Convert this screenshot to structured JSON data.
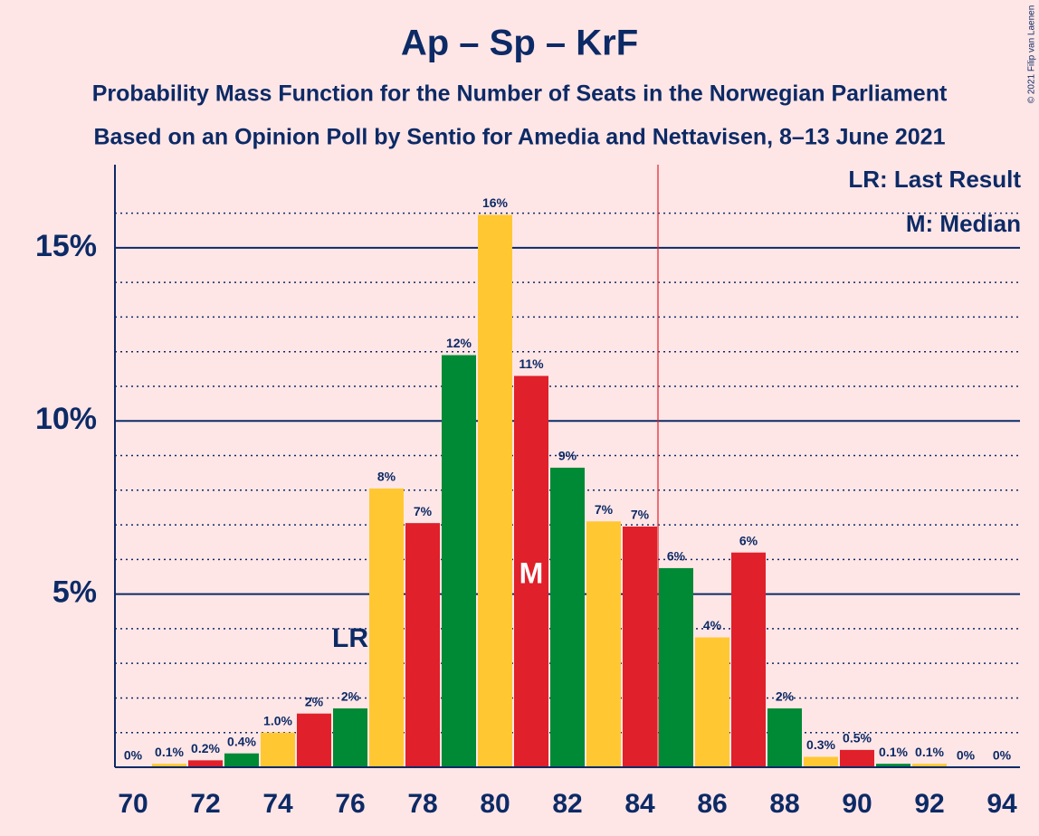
{
  "chart_data": {
    "type": "bar",
    "title": "Ap – Sp – KrF",
    "subtitle": "Probability Mass Function for the Number of Seats in the Norwegian Parliament",
    "subtitle2": "Based on an Opinion Poll by Sentio for Amedia and Nettavisen, 8–13 June 2021",
    "copyright": "© 2021 Filip van Laenen",
    "x": [
      70,
      71,
      72,
      73,
      74,
      75,
      76,
      77,
      78,
      79,
      80,
      81,
      82,
      83,
      84,
      85,
      86,
      87,
      88,
      89,
      90,
      91,
      92,
      93,
      94
    ],
    "values": [
      0,
      0.1,
      0.2,
      0.4,
      1,
      1.55,
      1.7,
      8.05,
      7.05,
      11.9,
      15.95,
      11.3,
      8.65,
      7.1,
      6.95,
      5.75,
      3.75,
      6.2,
      1.7,
      0.3,
      0.5,
      0.1,
      0.1,
      0,
      0
    ],
    "value_labels": [
      "0%",
      "0.1%",
      "0.2%",
      "0.4%",
      "1.0%",
      "2%",
      "2%",
      "8%",
      "7%",
      "12%",
      "16%",
      "11%",
      "9%",
      "7%",
      "7%",
      "6%",
      "4%",
      "6%",
      "2%",
      "0.3%",
      "0.5%",
      "0.1%",
      "0.1%",
      "0%",
      "0%"
    ],
    "colors": [
      "#008a35",
      "#ffc832",
      "#e0202a",
      "#008a35",
      "#ffc832",
      "#e0202a",
      "#008a35",
      "#ffc832",
      "#e0202a",
      "#008a35",
      "#ffc832",
      "#e0202a",
      "#008a35",
      "#ffc832",
      "#e0202a",
      "#008a35",
      "#ffc832",
      "#e0202a",
      "#008a35",
      "#ffc832",
      "#e0202a",
      "#008a35",
      "#ffc832",
      "#e0202a",
      "#008a35"
    ],
    "xlim": [
      69.5,
      94.5
    ],
    "xticks": [
      70,
      72,
      74,
      76,
      78,
      80,
      82,
      84,
      86,
      88,
      90,
      92,
      94
    ],
    "ylim": [
      0,
      17.4
    ],
    "yticks": [
      {
        "value": 5,
        "label": "5%"
      },
      {
        "value": 10,
        "label": "10%"
      },
      {
        "value": 15,
        "label": "15%"
      }
    ],
    "minor_yticks": [
      1,
      2,
      3,
      4,
      6,
      7,
      8,
      9,
      11,
      12,
      13,
      14,
      16
    ],
    "majority_line": 84.5,
    "last_result": {
      "x": 76,
      "label": "LR"
    },
    "median": {
      "x": 81,
      "label": "M"
    },
    "legend": [
      "LR: Last Result",
      "M: Median"
    ],
    "grid": true
  }
}
